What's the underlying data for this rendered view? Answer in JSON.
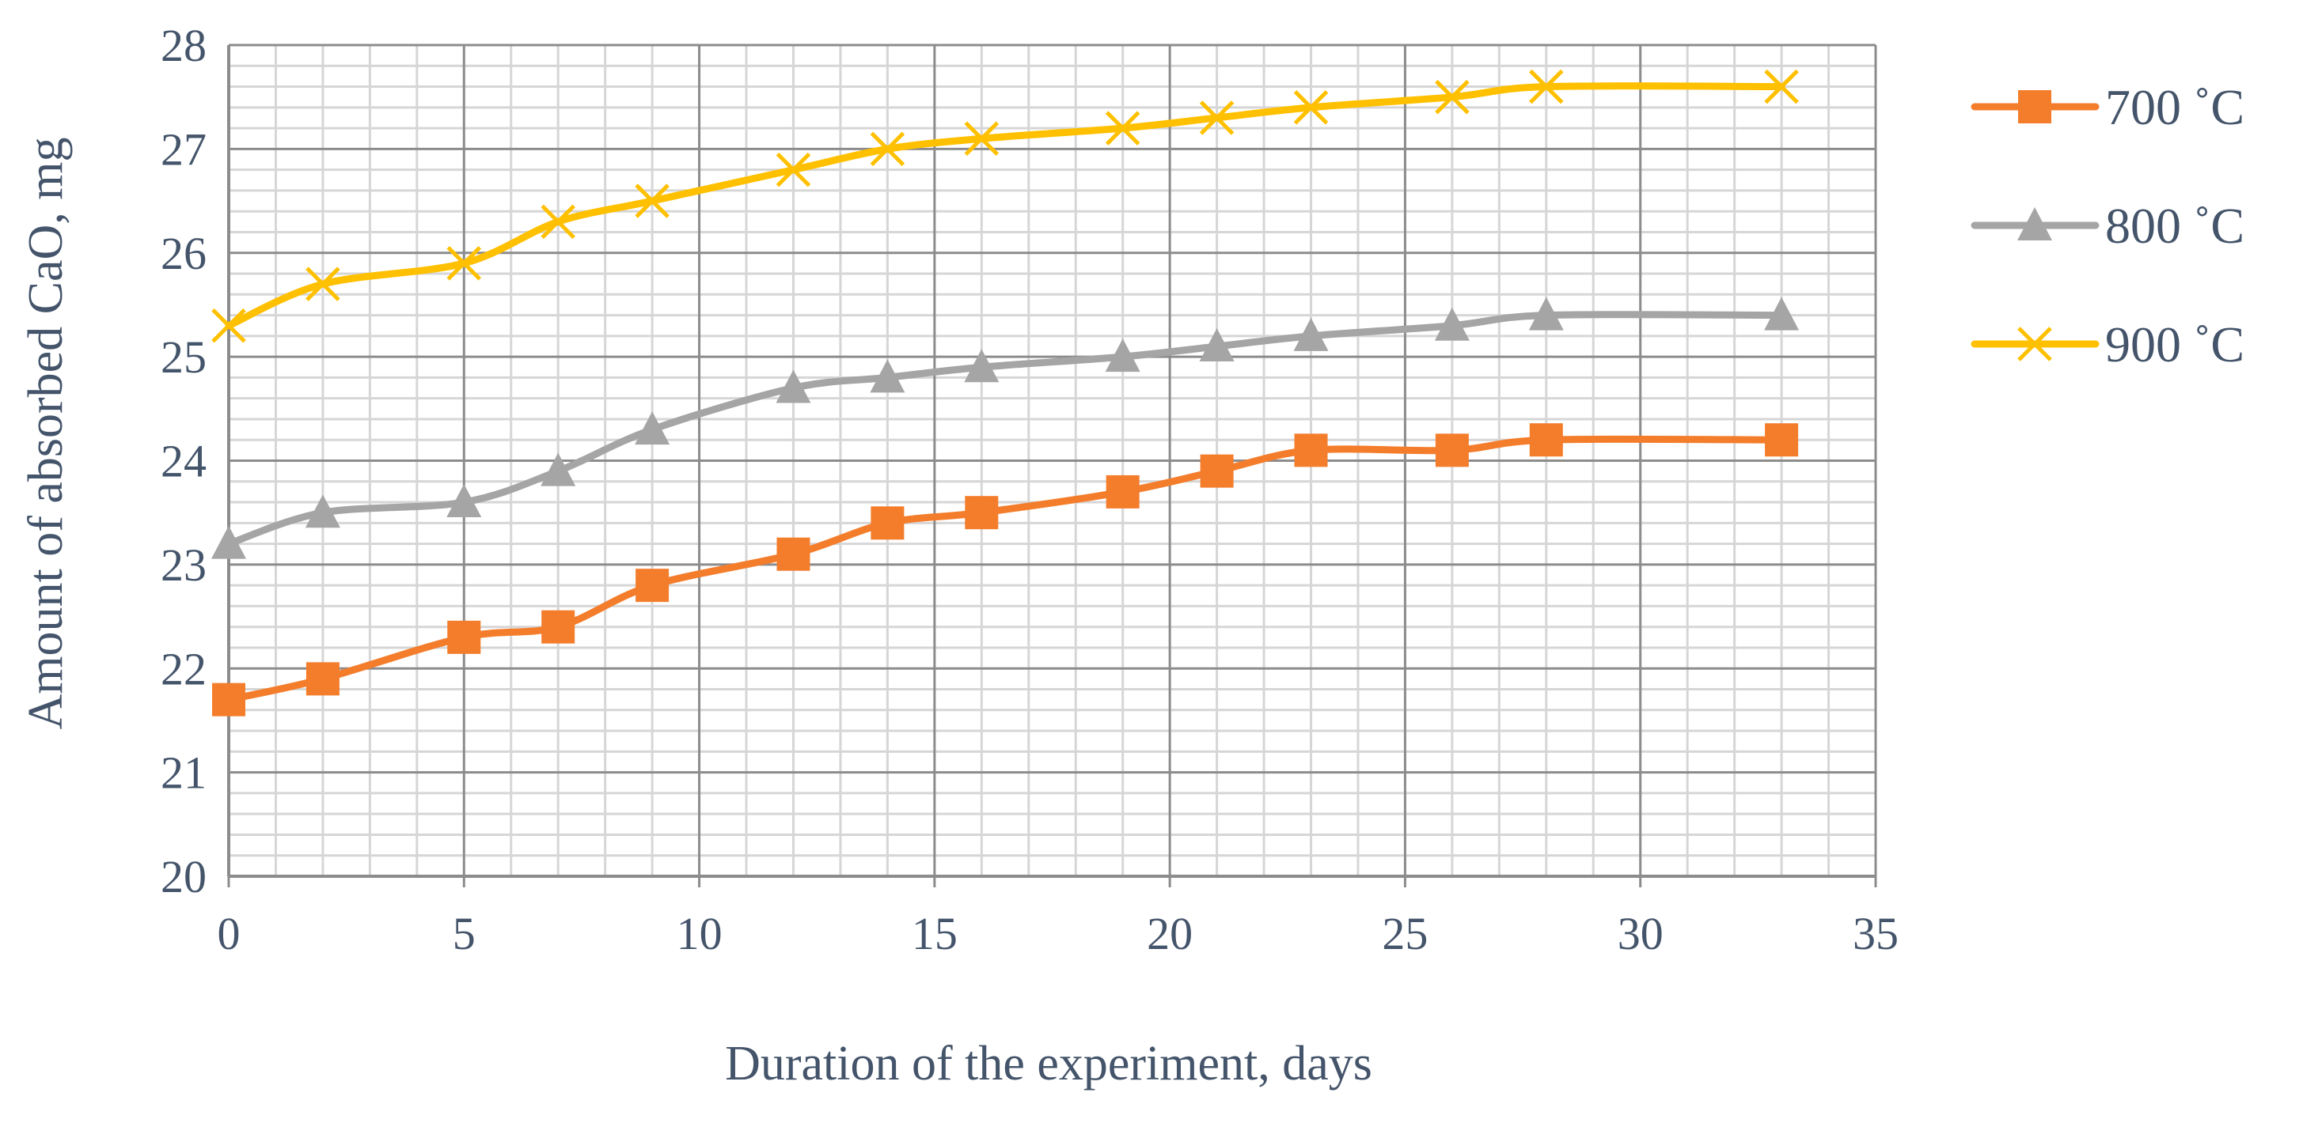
{
  "chart_data": {
    "type": "line",
    "title": "",
    "xlabel": "Duration of the experiment, days",
    "ylabel": "Amount of absorbed CaO, mg",
    "xlim": [
      0,
      35
    ],
    "ylim": [
      20,
      28
    ],
    "x_ticks": [
      "0",
      "5",
      "10",
      "15",
      "20",
      "25",
      "30",
      "35"
    ],
    "y_ticks": [
      "20",
      "21",
      "22",
      "23",
      "24",
      "25",
      "26",
      "27",
      "28"
    ],
    "x_major_step": 5,
    "x_minor_step": 1,
    "y_major_step": 1,
    "y_minor_step": 0.2,
    "grid": true,
    "legend_position": "right",
    "x": [
      0,
      2,
      5,
      7,
      9,
      12,
      14,
      16,
      19,
      21,
      23,
      26,
      28,
      33
    ],
    "series": [
      {
        "name": "700 ˚C",
        "color": "#f47d2c",
        "marker": "square",
        "values": [
          21.7,
          21.9,
          22.3,
          22.4,
          22.8,
          23.1,
          23.4,
          23.5,
          23.7,
          23.9,
          24.1,
          24.1,
          24.2,
          24.2
        ]
      },
      {
        "name": "800 ˚C",
        "color": "#a5a5a5",
        "marker": "triangle",
        "values": [
          23.2,
          23.5,
          23.6,
          23.9,
          24.3,
          24.7,
          24.8,
          24.9,
          25.0,
          25.1,
          25.2,
          25.3,
          25.4,
          25.4
        ]
      },
      {
        "name": "900 ˚C",
        "color": "#ffc000",
        "marker": "x",
        "values": [
          25.3,
          25.7,
          25.9,
          26.3,
          26.5,
          26.8,
          27.0,
          27.1,
          27.2,
          27.3,
          27.4,
          27.5,
          27.6,
          27.6
        ]
      }
    ]
  }
}
